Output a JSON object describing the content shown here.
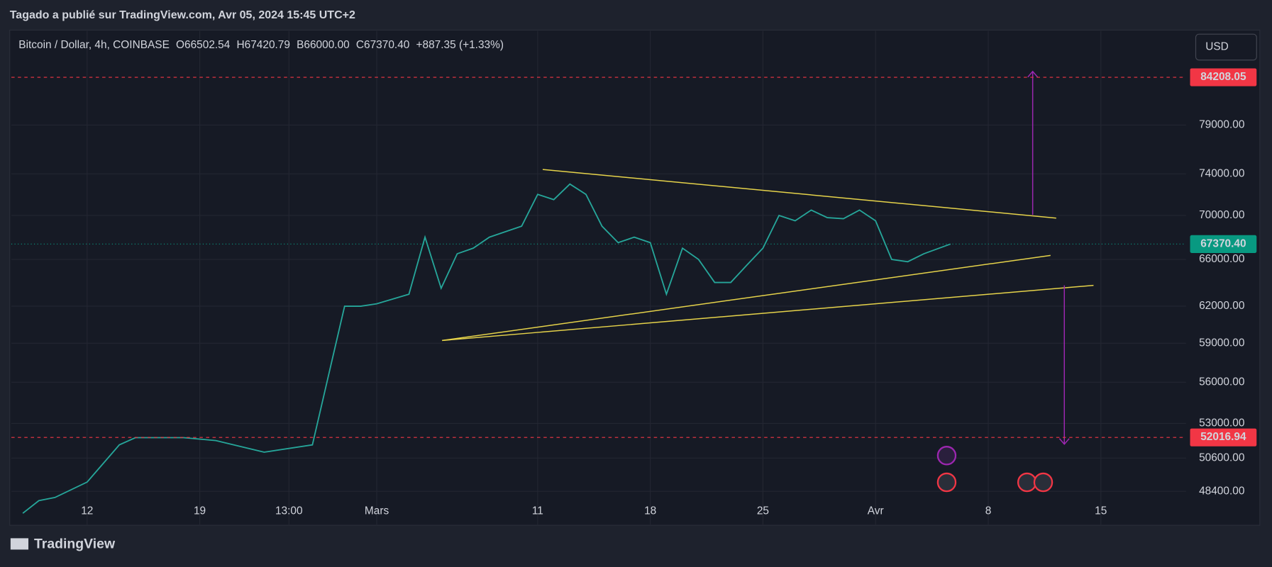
{
  "header": {
    "published": "Tagado a publié sur TradingView.com, Avr 05, 2024 15:45 UTC+2",
    "currency": "USD",
    "logo": "TradingView"
  },
  "legend": {
    "symbol": "Bitcoin / Dollar, 4h, COINBASE",
    "ohlc": [
      {
        "label": "O",
        "value": "66502.54"
      },
      {
        "label": "H",
        "value": "67420.79"
      },
      {
        "label": "B",
        "value": "66000.00"
      },
      {
        "label": "C",
        "value": "67370.40"
      }
    ],
    "change": "+887.35 (+1.33%)"
  },
  "chart_data": {
    "type": "line",
    "log_scale": true,
    "grid": true,
    "xlim": [
      "2024-02-07 07:00",
      "2024-04-20 07:00"
    ],
    "xticks": [
      {
        "value": "2024-02-12",
        "label": "12"
      },
      {
        "value": "2024-02-19",
        "label": "19"
      },
      {
        "value": "2024-02-24 13:00",
        "label": "13:00"
      },
      {
        "value": "2024-03-01",
        "label": "Mars"
      },
      {
        "value": "2024-03-11",
        "label": "11"
      },
      {
        "value": "2024-03-18",
        "label": "18"
      },
      {
        "value": "2024-03-25",
        "label": "25"
      },
      {
        "value": "2024-04-01",
        "label": "Avr"
      },
      {
        "value": "2024-04-08",
        "label": "8"
      },
      {
        "value": "2024-04-15",
        "label": "15"
      }
    ],
    "ylim": [
      46250,
      89600
    ],
    "yticks": [
      {
        "value": 48400,
        "label": "48400.00"
      },
      {
        "value": 50600,
        "label": "50600.00"
      },
      {
        "value": 53000,
        "label": "53000.00"
      },
      {
        "value": 56000,
        "label": "56000.00"
      },
      {
        "value": 59000,
        "label": "59000.00"
      },
      {
        "value": 62000,
        "label": "62000.00"
      },
      {
        "value": 66000,
        "label": "66000.00"
      },
      {
        "value": 70000,
        "label": "70000.00"
      },
      {
        "value": 74000,
        "label": "74000.00"
      },
      {
        "value": 79000,
        "label": "79000.00"
      }
    ],
    "levels": [
      {
        "value": 84208.05,
        "label": "84208.05",
        "color": "#f23645"
      },
      {
        "value": 67370.4,
        "label": "67370.40",
        "color": "#089981"
      },
      {
        "value": 52016.94,
        "label": "52016.94",
        "color": "#f23645"
      }
    ],
    "series": [
      {
        "color": "#26a69a",
        "x": [
          "2024-02-08",
          "2024-02-09",
          "2024-02-10",
          "2024-02-12",
          "2024-02-14",
          "2024-02-15",
          "2024-02-18",
          "2024-02-20",
          "2024-02-23",
          "2024-02-26",
          "2024-02-27",
          "2024-02-28",
          "2024-02-29",
          "2024-03-01",
          "2024-03-03",
          "2024-03-04",
          "2024-03-05",
          "2024-03-06",
          "2024-03-07",
          "2024-03-08",
          "2024-03-09",
          "2024-03-10",
          "2024-03-11",
          "2024-03-12",
          "2024-03-13",
          "2024-03-14",
          "2024-03-15",
          "2024-03-16",
          "2024-03-17",
          "2024-03-18",
          "2024-03-19",
          "2024-03-20",
          "2024-03-21",
          "2024-03-22",
          "2024-03-23",
          "2024-03-24",
          "2024-03-25",
          "2024-03-26",
          "2024-03-27",
          "2024-03-28",
          "2024-03-29",
          "2024-03-30",
          "2024-03-31",
          "2024-04-01",
          "2024-04-02",
          "2024-04-03",
          "2024-04-04",
          "2024-04-05 15:45"
        ],
        "values": [
          47000,
          47800,
          48000,
          49000,
          51500,
          52000,
          52000,
          51800,
          51000,
          51500,
          56500,
          62000,
          62000,
          62200,
          63000,
          68000,
          63500,
          66500,
          67000,
          68000,
          68500,
          69000,
          72000,
          71500,
          73000,
          72000,
          69000,
          67500,
          68000,
          67500,
          63000,
          67000,
          66000,
          64000,
          64000,
          65500,
          67000,
          70000,
          69500,
          70500,
          69800,
          69700,
          70500,
          69500,
          66000,
          65800,
          66500,
          67370.4
        ]
      }
    ]
  }
}
